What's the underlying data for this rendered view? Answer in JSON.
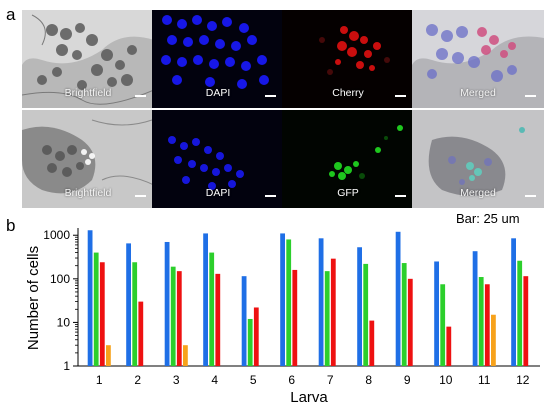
{
  "figure": {
    "panel_a_letter": "a",
    "panel_b_letter": "b",
    "scale_note": "Bar: 25 um"
  },
  "microscopy": {
    "rows": [
      {
        "tiles": [
          {
            "label": "Brightfield",
            "channel": "brightfield",
            "color": "#9a9a9a"
          },
          {
            "label": "DAPI",
            "channel": "dapi",
            "color": "#1a1aff"
          },
          {
            "label": "Cherry",
            "channel": "cherry",
            "color": "#e01010"
          },
          {
            "label": "Merged",
            "channel": "merged",
            "color": "#8a8fb0"
          }
        ]
      },
      {
        "tiles": [
          {
            "label": "Brightfield",
            "channel": "brightfield",
            "color": "#9a9a9a"
          },
          {
            "label": "DAPI",
            "channel": "dapi",
            "color": "#1a1aff"
          },
          {
            "label": "GFP",
            "channel": "gfp",
            "color": "#22dd22"
          },
          {
            "label": "Merged",
            "channel": "merged",
            "color": "#8a8fb0"
          }
        ]
      }
    ]
  },
  "chart_data": {
    "type": "bar",
    "title": "",
    "xlabel": "Larva",
    "ylabel": "Number of cells",
    "yscale": "log",
    "ylim": [
      1,
      1000
    ],
    "yticks": [
      "1",
      "10",
      "100",
      "1000"
    ],
    "categories": [
      "1",
      "2",
      "3",
      "4",
      "5",
      "6",
      "7",
      "8",
      "9",
      "10",
      "11",
      "12"
    ],
    "legend": "none",
    "grid": false,
    "series": [
      {
        "color": "#1f6fe6",
        "values": [
          1300,
          650,
          700,
          1100,
          115,
          1100,
          850,
          530,
          1200,
          250,
          430,
          850
        ]
      },
      {
        "color": "#2ccf2c",
        "values": [
          400,
          240,
          190,
          400,
          12,
          800,
          150,
          220,
          230,
          75,
          110,
          260
        ]
      },
      {
        "color": "#ee1111",
        "values": [
          240,
          30,
          150,
          130,
          22,
          160,
          290,
          11,
          100,
          8,
          75,
          115
        ]
      },
      {
        "color": "#f7a21b",
        "values": [
          3,
          null,
          3,
          null,
          null,
          null,
          null,
          null,
          null,
          null,
          15,
          null
        ]
      }
    ]
  }
}
